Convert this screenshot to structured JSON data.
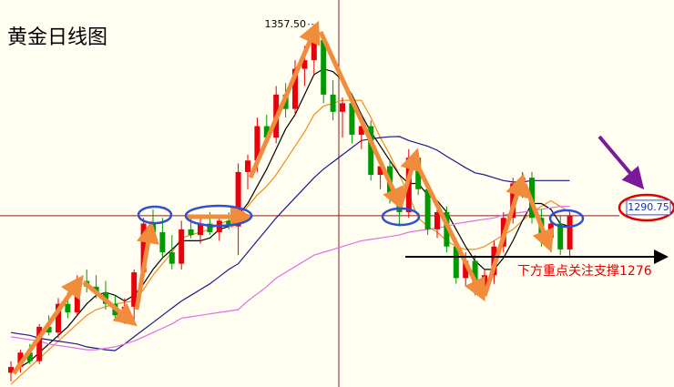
{
  "chart_data": {
    "type": "candlestick",
    "title": "黄金日线图",
    "ylim": [
      1231,
      1366
    ],
    "up_color": "#e8000b",
    "down_color": "#009a00",
    "open": [
      1236,
      1238,
      1243,
      1240,
      1252,
      1250,
      1260,
      1257,
      1268,
      1266,
      1264,
      1260,
      1256,
      1259,
      1271,
      1288,
      1285,
      1278,
      1274,
      1286,
      1284,
      1288,
      1285,
      1289,
      1287,
      1306,
      1310,
      1322,
      1318,
      1333,
      1328,
      1342,
      1345,
      1352,
      1333,
      1327,
      1330,
      1319,
      1322,
      1305,
      1308,
      1297,
      1292,
      1311,
      1300,
      1286,
      1292,
      1280,
      1269,
      1275,
      1265,
      1270,
      1280,
      1290,
      1302,
      1304,
      1290,
      1283,
      1288,
      1279
    ],
    "high": [
      1240,
      1244,
      1246,
      1253,
      1256,
      1262,
      1264,
      1270,
      1272,
      1270,
      1268,
      1263,
      1262,
      1272,
      1290,
      1293,
      1290,
      1284,
      1289,
      1290,
      1290,
      1292,
      1291,
      1292,
      1309,
      1312,
      1325,
      1326,
      1336,
      1337,
      1345,
      1350,
      1357.5,
      1354,
      1338,
      1332,
      1333,
      1326,
      1324,
      1311,
      1310,
      1300,
      1314,
      1313,
      1302,
      1295,
      1294,
      1283,
      1278,
      1277,
      1272,
      1282,
      1292,
      1304,
      1306,
      1306,
      1293,
      1290,
      1291,
      1292
    ],
    "low": [
      1233,
      1236,
      1239,
      1239,
      1249,
      1248,
      1255,
      1256,
      1264,
      1262,
      1258,
      1254,
      1253,
      1254,
      1269,
      1283,
      1276,
      1272,
      1272,
      1283,
      1281,
      1284,
      1282,
      1286,
      1277,
      1300,
      1306,
      1316,
      1316,
      1325,
      1326,
      1336,
      1340,
      1330,
      1324,
      1318,
      1316,
      1314,
      1303,
      1300,
      1295,
      1287,
      1290,
      1298,
      1284,
      1283,
      1278,
      1267,
      1266,
      1263,
      1261,
      1267,
      1278,
      1288,
      1297,
      1288,
      1280,
      1278,
      1277,
      1276
    ],
    "close": [
      1238,
      1243,
      1240,
      1252,
      1250,
      1260,
      1257,
      1268,
      1266,
      1264,
      1260,
      1256,
      1259,
      1271,
      1288,
      1285,
      1278,
      1274,
      1286,
      1284,
      1288,
      1285,
      1289,
      1287,
      1306,
      1310,
      1322,
      1318,
      1333,
      1328,
      1342,
      1345,
      1352,
      1333,
      1327,
      1330,
      1319,
      1322,
      1305,
      1308,
      1297,
      1292,
      1311,
      1300,
      1286,
      1292,
      1280,
      1269,
      1275,
      1265,
      1270,
      1280,
      1290,
      1302,
      1304,
      1290,
      1283,
      1288,
      1279,
      1290.75
    ],
    "series": [
      {
        "color": "#f08c1e",
        "values": [
          1232,
          1235,
          1238,
          1241,
          1244,
          1247,
          1250,
          1253,
          1256,
          1258,
          1259,
          1260,
          1260.5,
          1261,
          1265,
          1270,
          1274,
          1278,
          1283,
          1284,
          1285,
          1286,
          1288,
          1289,
          1290,
          1294,
          1298,
          1301,
          1305,
          1310,
          1315,
          1320,
          1326,
          1329,
          1330,
          1331,
          1331,
          1331,
          1325,
          1318,
          1312,
          1305,
          1298,
          1290,
          1287,
          1285,
          1282,
          1280,
          1279,
          1279,
          1280,
          1282,
          1284,
          1286,
          1289,
          1292,
          1294,
          1296,
          1294,
          1292
        ]
      },
      {
        "color": "#000000",
        "values": [
          1236,
          1238,
          1240,
          1243,
          1246,
          1249,
          1252,
          1256,
          1260,
          1263,
          1264,
          1263,
          1261,
          1263,
          1267,
          1272,
          1276,
          1279,
          1282,
          1282,
          1282,
          1283,
          1286,
          1287,
          1291,
          1295,
          1301,
          1307,
          1314,
          1321,
          1326,
          1333,
          1340,
          1342,
          1341,
          1338,
          1333,
          1326,
          1320,
          1315,
          1310,
          1305,
          1302,
          1302,
          1298,
          1296,
          1292,
          1286,
          1280,
          1275,
          1272,
          1272,
          1276,
          1282,
          1289,
          1295,
          1295,
          1293,
          1288,
          1287
        ]
      },
      {
        "color": "#1a1a8c",
        "values": [
          1250,
          1249.5,
          1249,
          1248,
          1247.5,
          1247,
          1246.5,
          1246,
          1245,
          1244.5,
          1244,
          1243.7,
          1246,
          1248.5,
          1251,
          1253.5,
          1256,
          1258.5,
          1261,
          1263,
          1265,
          1267,
          1269.5,
          1272,
          1274,
          1278,
          1282,
          1286,
          1290,
          1293.5,
          1297,
          1300.5,
          1304,
          1307,
          1309.5,
          1312,
          1314.5,
          1317,
          1317.5,
          1318,
          1318.3,
          1318.4,
          1317,
          1316,
          1315,
          1313.6,
          1311.5,
          1309.5,
          1307.5,
          1305.7,
          1305,
          1304,
          1303,
          1302.5,
          1302.5,
          1303,
          1303,
          1303,
          1303,
          1303
        ]
      },
      {
        "color": "#e070e0",
        "values": [
          1248.5,
          1248,
          1247.5,
          1247,
          1246,
          1245.5,
          1245,
          1244.5,
          1244,
          1244,
          1244.5,
          1245,
          1246,
          1247,
          1248.5,
          1250,
          1251.5,
          1253,
          1255,
          1255.5,
          1256,
          1256.5,
          1257,
          1257.5,
          1258,
          1261,
          1263.5,
          1266,
          1269,
          1271,
          1273,
          1275,
          1277,
          1278,
          1279,
          1280,
          1281,
          1282,
          1282.5,
          1283,
          1283.5,
          1284,
          1285,
          1285.5,
          1286,
          1286.5,
          1287,
          1288,
          1288.5,
          1289,
          1289.5,
          1290,
          1291,
          1291.5,
          1292,
          1292.5,
          1293,
          1293.5,
          1294,
          1294
        ]
      }
    ],
    "high_label": {
      "value": 1357.5,
      "label": "1357.50"
    },
    "last_price": 1290.75,
    "annotation": "下方重点关注支撑1276"
  }
}
